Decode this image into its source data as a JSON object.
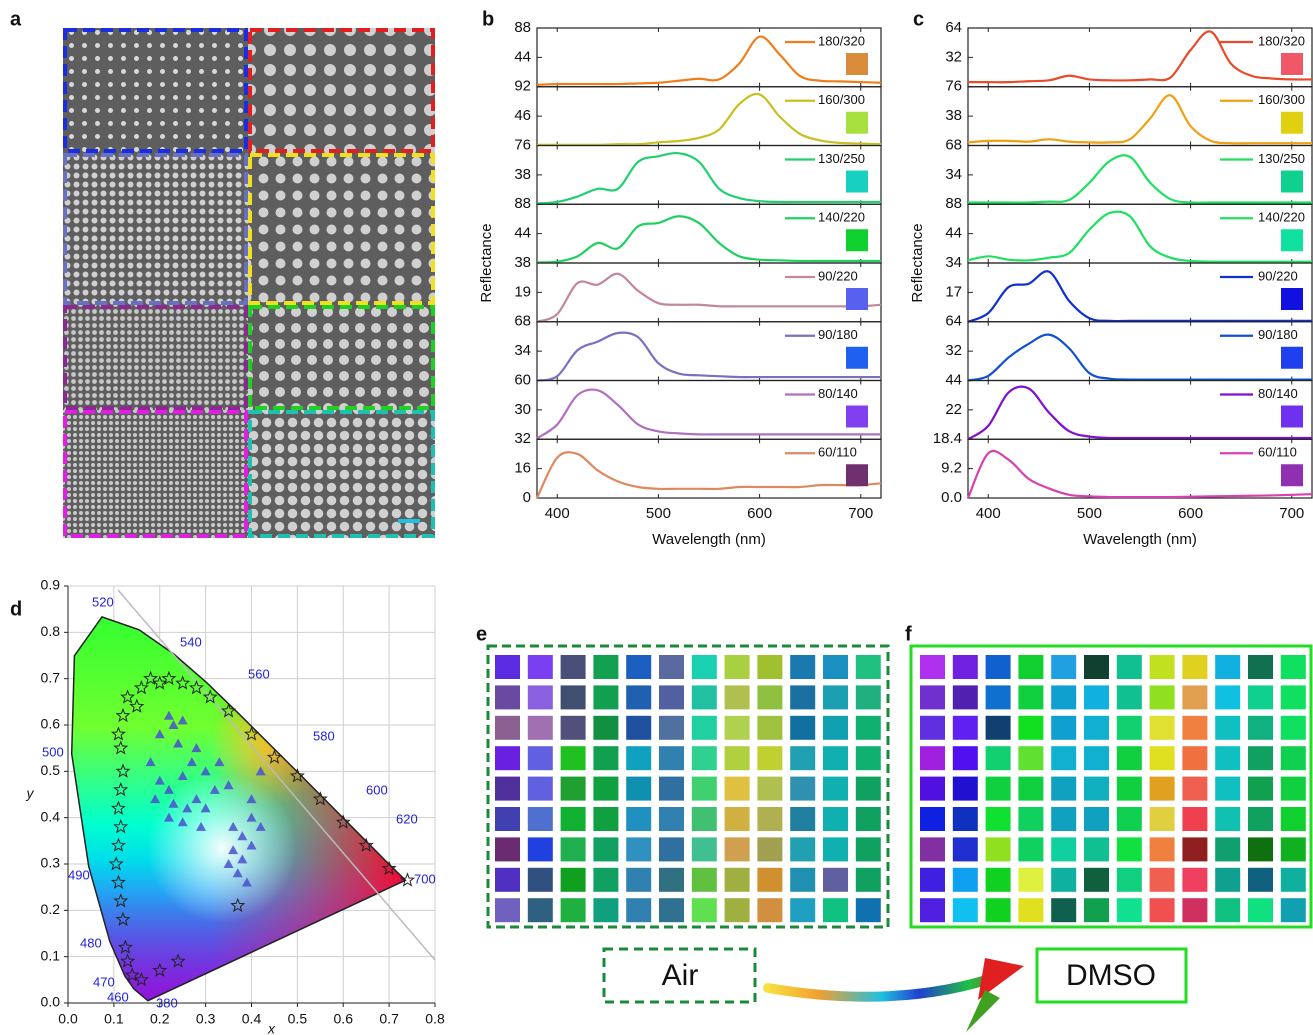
{
  "panel_a": {
    "label": "a"
  },
  "chart_data": [
    {
      "type": "line",
      "label": "b",
      "ylabel": "Reflectance",
      "xlabel": "Wavelength (nm)",
      "xlim": [
        380,
        720
      ],
      "xticks": [
        400,
        500,
        600,
        700
      ],
      "x": [
        380,
        400,
        420,
        440,
        460,
        480,
        500,
        520,
        540,
        560,
        580,
        600,
        620,
        640,
        660,
        680,
        700,
        720
      ],
      "subplots": [
        {
          "name": "180/320",
          "color": "#f07d1a",
          "swatch": "#d98c3c",
          "ylim": [
            0,
            88
          ],
          "yticks": [
            44,
            88
          ],
          "values": [
            3,
            4,
            4,
            4,
            4,
            5,
            6,
            9,
            12,
            11,
            35,
            75,
            48,
            16,
            9,
            8,
            7,
            6
          ]
        },
        {
          "name": "160/300",
          "color": "#c8c020",
          "swatch": "#a8e040",
          "ylim": [
            0,
            92
          ],
          "yticks": [
            46,
            92
          ],
          "values": [
            1,
            1,
            1,
            1,
            2,
            2,
            5,
            7,
            12,
            25,
            65,
            80,
            45,
            18,
            8,
            4,
            3,
            2
          ]
        },
        {
          "name": "130/250",
          "color": "#20d070",
          "swatch": "#18d0c0",
          "ylim": [
            0,
            76
          ],
          "yticks": [
            38,
            76
          ],
          "values": [
            1,
            3,
            10,
            20,
            20,
            55,
            62,
            66,
            55,
            20,
            8,
            4,
            3,
            3,
            3,
            3,
            3,
            3
          ]
        },
        {
          "name": "140/220",
          "color": "#20d060",
          "swatch": "#10d030",
          "ylim": [
            0,
            88
          ],
          "yticks": [
            44,
            88
          ],
          "values": [
            1,
            2,
            10,
            30,
            22,
            55,
            60,
            70,
            60,
            30,
            10,
            5,
            4,
            3,
            3,
            3,
            3,
            3
          ]
        },
        {
          "name": "90/220",
          "color": "#c08898",
          "swatch": "#5860f0",
          "ylim": [
            0,
            38
          ],
          "yticks": [
            19,
            38
          ],
          "values": [
            0,
            5,
            25,
            24,
            31,
            20,
            12,
            11,
            11,
            10,
            10,
            10,
            10,
            10,
            10,
            10,
            10,
            11
          ]
        },
        {
          "name": "90/180",
          "color": "#7a70c0",
          "swatch": "#2060f0",
          "ylim": [
            0,
            68
          ],
          "yticks": [
            34,
            68
          ],
          "values": [
            0,
            5,
            35,
            45,
            55,
            50,
            20,
            8,
            6,
            5,
            4,
            4,
            4,
            4,
            4,
            4,
            4,
            4
          ]
        },
        {
          "name": "80/140",
          "color": "#b070c0",
          "swatch": "#8040f0",
          "ylim": [
            0,
            60
          ],
          "yticks": [
            30,
            60
          ],
          "values": [
            1,
            15,
            45,
            50,
            35,
            15,
            8,
            6,
            5,
            5,
            5,
            5,
            5,
            5,
            5,
            5,
            5,
            5
          ]
        },
        {
          "name": "60/110",
          "color": "#e08860",
          "swatch": "#703070",
          "ylim": [
            0,
            32
          ],
          "yticks": [
            0,
            16,
            32
          ],
          "values": [
            0,
            22,
            24,
            15,
            9,
            6,
            5,
            5,
            5,
            5,
            6,
            6,
            6,
            6,
            7,
            7,
            7,
            8
          ]
        }
      ]
    },
    {
      "type": "line",
      "label": "c",
      "ylabel": "Reflectance",
      "xlabel": "Wavelength (nm)",
      "xlim": [
        380,
        720
      ],
      "xticks": [
        400,
        500,
        600,
        700
      ],
      "x": [
        380,
        400,
        420,
        440,
        460,
        480,
        500,
        520,
        540,
        560,
        580,
        600,
        620,
        640,
        660,
        680,
        700,
        720
      ],
      "subplots": [
        {
          "name": "180/320",
          "color": "#e84a2a",
          "swatch": "#f05868",
          "ylim": [
            0,
            64
          ],
          "yticks": [
            32,
            64
          ],
          "values": [
            5,
            5,
            5,
            6,
            7,
            12,
            8,
            7,
            7,
            8,
            10,
            40,
            60,
            25,
            12,
            9,
            8,
            8
          ]
        },
        {
          "name": "160/300",
          "color": "#f0a010",
          "swatch": "#e0d010",
          "ylim": [
            0,
            76
          ],
          "yticks": [
            38,
            76
          ],
          "values": [
            4,
            6,
            6,
            5,
            8,
            5,
            4,
            4,
            8,
            35,
            65,
            25,
            6,
            3,
            3,
            3,
            3,
            3
          ]
        },
        {
          "name": "130/250",
          "color": "#20e060",
          "swatch": "#10d090",
          "ylim": [
            0,
            68
          ],
          "yticks": [
            34,
            68
          ],
          "values": [
            2,
            2,
            2,
            2,
            3,
            5,
            25,
            50,
            55,
            25,
            6,
            2,
            2,
            2,
            2,
            2,
            2,
            2
          ]
        },
        {
          "name": "140/220",
          "color": "#20e060",
          "swatch": "#10e0a0",
          "ylim": [
            0,
            88
          ],
          "yticks": [
            44,
            88
          ],
          "values": [
            4,
            10,
            5,
            4,
            8,
            15,
            50,
            75,
            70,
            25,
            8,
            3,
            2,
            2,
            2,
            2,
            2,
            2
          ]
        },
        {
          "name": "90/220",
          "color": "#1030d0",
          "swatch": "#1010e0",
          "ylim": [
            0,
            34
          ],
          "yticks": [
            17,
            34
          ],
          "values": [
            0,
            5,
            20,
            22,
            29,
            12,
            2,
            0.5,
            0.5,
            0.5,
            0.5,
            0.5,
            0.5,
            0.5,
            0.5,
            0.5,
            0.5,
            0.5
          ]
        },
        {
          "name": "90/180",
          "color": "#1050d0",
          "swatch": "#2040f0",
          "ylim": [
            0,
            64
          ],
          "yticks": [
            32,
            64
          ],
          "values": [
            0,
            5,
            25,
            40,
            50,
            35,
            8,
            2,
            1,
            1,
            1,
            1,
            1,
            1,
            1,
            1,
            1,
            1
          ]
        },
        {
          "name": "80/140",
          "color": "#8010d0",
          "swatch": "#7030f0",
          "ylim": [
            0,
            44
          ],
          "yticks": [
            22,
            44
          ],
          "values": [
            0,
            10,
            35,
            38,
            20,
            6,
            2,
            1,
            1,
            1,
            1,
            1,
            1,
            1,
            1,
            1,
            1,
            1
          ]
        },
        {
          "name": "60/110",
          "color": "#d840b0",
          "swatch": "#9030b0",
          "ylim": [
            0,
            18.4
          ],
          "yticks": [
            {
              "value": 0,
              "label": "0.0"
            },
            9.2,
            18.4
          ],
          "values": [
            0,
            14,
            12,
            6,
            3,
            1,
            0.5,
            0.3,
            0.3,
            0.3,
            0.3,
            0.4,
            0.5,
            0.6,
            0.7,
            0.8,
            1,
            1.2
          ]
        }
      ]
    },
    {
      "type": "scatter",
      "label": "d",
      "xlabel": "x",
      "ylabel": "y",
      "xlim": [
        0,
        0.8
      ],
      "ylim": [
        0,
        0.9
      ],
      "grid": true,
      "xticks": [
        {
          "value": 0,
          "label": "0.0"
        },
        0.1,
        0.2,
        0.3,
        0.4,
        0.5,
        0.6,
        0.7,
        0.8
      ],
      "yticks": [
        {
          "value": 0,
          "label": "0.0"
        },
        0.1,
        0.2,
        0.3,
        0.4,
        0.5,
        0.6,
        0.7,
        0.8,
        0.9
      ],
      "wavelength_labels": [
        "520",
        "540",
        "560",
        "580",
        "600",
        "620",
        "700",
        "500",
        "490",
        "480",
        "470",
        "460",
        "380"
      ],
      "series": [
        {
          "marker": "star",
          "color": "#222222",
          "x": [
            0.12,
            0.11,
            0.115,
            0.12,
            0.115,
            0.11,
            0.115,
            0.11,
            0.105,
            0.11,
            0.115,
            0.12,
            0.125,
            0.13,
            0.14,
            0.16,
            0.2,
            0.24,
            0.16,
            0.18,
            0.2,
            0.22,
            0.25,
            0.28,
            0.31,
            0.35,
            0.4,
            0.45,
            0.5,
            0.55,
            0.6,
            0.65,
            0.7,
            0.74,
            0.37,
            0.15,
            0.13
          ],
          "y": [
            0.62,
            0.58,
            0.55,
            0.5,
            0.46,
            0.42,
            0.38,
            0.34,
            0.3,
            0.26,
            0.22,
            0.18,
            0.12,
            0.09,
            0.06,
            0.05,
            0.07,
            0.09,
            0.68,
            0.7,
            0.69,
            0.7,
            0.69,
            0.68,
            0.66,
            0.63,
            0.58,
            0.53,
            0.49,
            0.44,
            0.39,
            0.34,
            0.29,
            0.265,
            0.21,
            0.64,
            0.66
          ]
        },
        {
          "marker": "triangle",
          "color": "#4a50d0",
          "x": [
            0.22,
            0.23,
            0.25,
            0.2,
            0.24,
            0.28,
            0.27,
            0.18,
            0.2,
            0.22,
            0.25,
            0.3,
            0.33,
            0.32,
            0.35,
            0.19,
            0.23,
            0.26,
            0.28,
            0.3,
            0.25,
            0.22,
            0.29,
            0.4,
            0.38,
            0.36,
            0.38,
            0.35,
            0.37,
            0.39,
            0.4,
            0.42,
            0.4,
            0.42,
            0.36
          ],
          "y": [
            0.62,
            0.6,
            0.61,
            0.58,
            0.56,
            0.55,
            0.52,
            0.52,
            0.48,
            0.46,
            0.49,
            0.5,
            0.52,
            0.46,
            0.47,
            0.44,
            0.43,
            0.42,
            0.44,
            0.42,
            0.39,
            0.4,
            0.38,
            0.4,
            0.36,
            0.33,
            0.31,
            0.3,
            0.28,
            0.26,
            0.34,
            0.38,
            0.44,
            0.5,
            0.38
          ]
        }
      ]
    }
  ],
  "panel_e": {
    "label": "e",
    "colors": [
      [
        "#5a2be0",
        "#7a3ff0",
        "#4a4f7a",
        "#13a050",
        "#1c5fc0",
        "#5a6aa0",
        "#1ad0b0",
        "#a8d040",
        "#a0c030",
        "#1a7ab0",
        "#1a90c0",
        "#20c080"
      ],
      [
        "#6a4aa0",
        "#8a60e0",
        "#404f70",
        "#10a050",
        "#2060b0",
        "#5060a0",
        "#20c0a0",
        "#b0c050",
        "#90c040",
        "#1a70a0",
        "#1aa0b0",
        "#20b080"
      ],
      [
        "#8a6090",
        "#a070b0",
        "#50507a",
        "#109040",
        "#2050a0",
        "#5070a0",
        "#20d0a0",
        "#b0d050",
        "#a0c040",
        "#1070a0",
        "#10a0b0",
        "#10b070"
      ],
      [
        "#6a20e0",
        "#6060e0",
        "#20c020",
        "#10a050",
        "#10a0c0",
        "#3080b0",
        "#30d090",
        "#b0d040",
        "#c0d030",
        "#20a0b0",
        "#10b0b0",
        "#10b070"
      ],
      [
        "#50309a",
        "#6060e0",
        "#20a030",
        "#10a040",
        "#1090b0",
        "#3070a0",
        "#40d070",
        "#e0c040",
        "#b0c050",
        "#3090b0",
        "#10b0b0",
        "#10a060"
      ],
      [
        "#4040b0",
        "#5070d0",
        "#10b030",
        "#10a040",
        "#2090c0",
        "#3080b0",
        "#40c070",
        "#d0b040",
        "#b0b050",
        "#2080a0",
        "#10b0b0",
        "#10a060"
      ],
      [
        "#6a2a70",
        "#2040e0",
        "#20b050",
        "#10a060",
        "#3090c0",
        "#3070a0",
        "#40c090",
        "#d0a050",
        "#a0a050",
        "#20a0b0",
        "#10b0b0",
        "#10a060"
      ],
      [
        "#5030c0",
        "#305080",
        "#10a020",
        "#10a060",
        "#3080b0",
        "#307080",
        "#60c040",
        "#a0b040",
        "#d09030",
        "#2090b0",
        "#6060a0",
        "#10a060"
      ],
      [
        "#7060c0",
        "#306080",
        "#20b040",
        "#10a080",
        "#3080b0",
        "#307090",
        "#60e050",
        "#a0b040",
        "#d09040",
        "#20a0c0",
        "#10c080",
        "#1070b0"
      ]
    ]
  },
  "panel_f": {
    "label": "f",
    "colors": [
      [
        "#b030f0",
        "#7020e0",
        "#1060d0",
        "#10d030",
        "#20a0e0",
        "#104030",
        "#10c090",
        "#c0e020",
        "#e0d020",
        "#10b0e0",
        "#107050",
        "#10e060"
      ],
      [
        "#7030d0",
        "#5020b0",
        "#1070d0",
        "#10d040",
        "#10a0d0",
        "#10b0e0",
        "#10c090",
        "#90e020",
        "#e0a050",
        "#10c0e0",
        "#10d090",
        "#10e060"
      ],
      [
        "#6030e0",
        "#6020f0",
        "#104070",
        "#10e020",
        "#10a0d0",
        "#10b0d0",
        "#10d070",
        "#e0e030",
        "#f08040",
        "#10c0c0",
        "#10b080",
        "#10e060"
      ],
      [
        "#a020e0",
        "#5010f0",
        "#10d070",
        "#60e030",
        "#10b0d0",
        "#10b0d0",
        "#10d040",
        "#e0e020",
        "#f07040",
        "#10c0c0",
        "#10a060",
        "#10d050"
      ],
      [
        "#5010e0",
        "#2010d0",
        "#10d040",
        "#10d040",
        "#10a0c0",
        "#10b0c0",
        "#10d040",
        "#e0a020",
        "#f06050",
        "#10c0c0",
        "#10a050",
        "#10d040"
      ],
      [
        "#1020e0",
        "#1030c0",
        "#10e030",
        "#10d060",
        "#10a0c0",
        "#10a0c0",
        "#10d050",
        "#e0d040",
        "#f04050",
        "#10c0b0",
        "#10a060",
        "#10d030"
      ],
      [
        "#8030a0",
        "#2030d0",
        "#90e020",
        "#10d060",
        "#10d0a0",
        "#10c090",
        "#10e040",
        "#f08040",
        "#902020",
        "#10a070",
        "#107010",
        "#10b020"
      ],
      [
        "#4020e0",
        "#10a0f0",
        "#10d020",
        "#e0f040",
        "#10b0a0",
        "#106040",
        "#10d080",
        "#f06050",
        "#f04060",
        "#10a090",
        "#106080",
        "#10b0a0"
      ],
      [
        "#5020e0",
        "#10c0f0",
        "#10d020",
        "#e0e020",
        "#106050",
        "#10a050",
        "#10e090",
        "#f05050",
        "#d03060",
        "#10c080",
        "#10e080",
        "#10a0b0"
      ]
    ]
  },
  "conditions": [
    "Air",
    "DMSO"
  ]
}
